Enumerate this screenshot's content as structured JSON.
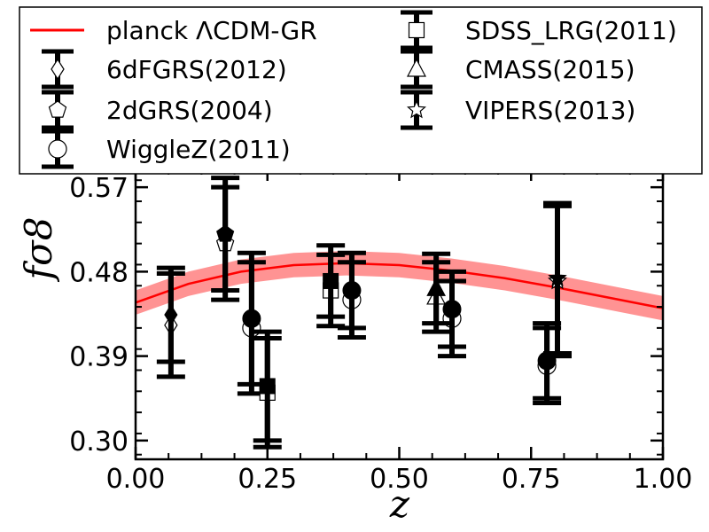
{
  "chart_data": {
    "type": "scatter",
    "title": "",
    "xlabel": "z",
    "ylabel": "fσ8",
    "xlim": [
      0.0,
      1.0
    ],
    "ylim": [
      0.28,
      0.59
    ],
    "x_ticks": [
      0.0,
      0.25,
      0.5,
      0.75,
      1.0
    ],
    "x_tick_labels": [
      "0.00",
      "0.25",
      "0.50",
      "0.75",
      "1.00"
    ],
    "y_ticks": [
      0.3,
      0.39,
      0.48,
      0.57
    ],
    "y_tick_labels": [
      "0.30",
      "0.39",
      "0.48",
      "0.57"
    ],
    "grid": false,
    "legend_placement": "top",
    "model": {
      "name": "planck ΛCDM-GR",
      "color": "#ff0000",
      "band_color": "#ff8080",
      "x": [
        0.0,
        0.1,
        0.2,
        0.3,
        0.4,
        0.5,
        0.6,
        0.7,
        0.8,
        0.9,
        1.0
      ],
      "y": [
        0.447,
        0.467,
        0.48,
        0.487,
        0.489,
        0.487,
        0.481,
        0.473,
        0.463,
        0.452,
        0.441
      ],
      "band_halfwidth": 0.013
    },
    "series": [
      {
        "name": "6dFGRS(2012)",
        "marker": "diamond",
        "points": [
          {
            "x": 0.067,
            "y": 0.423,
            "err": 0.055
          },
          {
            "x": 0.067,
            "y": 0.434,
            "err": 0.05
          }
        ]
      },
      {
        "name": "2dGRS(2004)",
        "marker": "pentagon",
        "points": [
          {
            "x": 0.17,
            "y": 0.51,
            "err": 0.06
          },
          {
            "x": 0.17,
            "y": 0.52,
            "err": 0.06
          }
        ]
      },
      {
        "name": "WiggleZ(2011)",
        "marker": "circle",
        "points": [
          {
            "x": 0.22,
            "y": 0.42,
            "err": 0.07
          },
          {
            "x": 0.41,
            "y": 0.45,
            "err": 0.04
          },
          {
            "x": 0.6,
            "y": 0.43,
            "err": 0.04
          },
          {
            "x": 0.78,
            "y": 0.38,
            "err": 0.04
          },
          {
            "x": 0.22,
            "y": 0.43,
            "err": 0.07
          },
          {
            "x": 0.41,
            "y": 0.46,
            "err": 0.04
          },
          {
            "x": 0.6,
            "y": 0.44,
            "err": 0.04
          },
          {
            "x": 0.78,
            "y": 0.385,
            "err": 0.04
          }
        ]
      },
      {
        "name": "SDSS_LRG(2011)",
        "marker": "square",
        "points": [
          {
            "x": 0.25,
            "y": 0.351,
            "err": 0.058
          },
          {
            "x": 0.37,
            "y": 0.46,
            "err": 0.038
          },
          {
            "x": 0.25,
            "y": 0.358,
            "err": 0.058
          },
          {
            "x": 0.37,
            "y": 0.47,
            "err": 0.038
          }
        ]
      },
      {
        "name": "CMASS(2015)",
        "marker": "triangle",
        "points": [
          {
            "x": 0.57,
            "y": 0.453,
            "err": 0.037
          },
          {
            "x": 0.57,
            "y": 0.462,
            "err": 0.037
          }
        ]
      },
      {
        "name": "VIPERS(2013)",
        "marker": "star",
        "points": [
          {
            "x": 0.8,
            "y": 0.47,
            "err": 0.08
          },
          {
            "x": 0.8,
            "y": 0.473,
            "err": 0.08
          }
        ]
      }
    ]
  }
}
